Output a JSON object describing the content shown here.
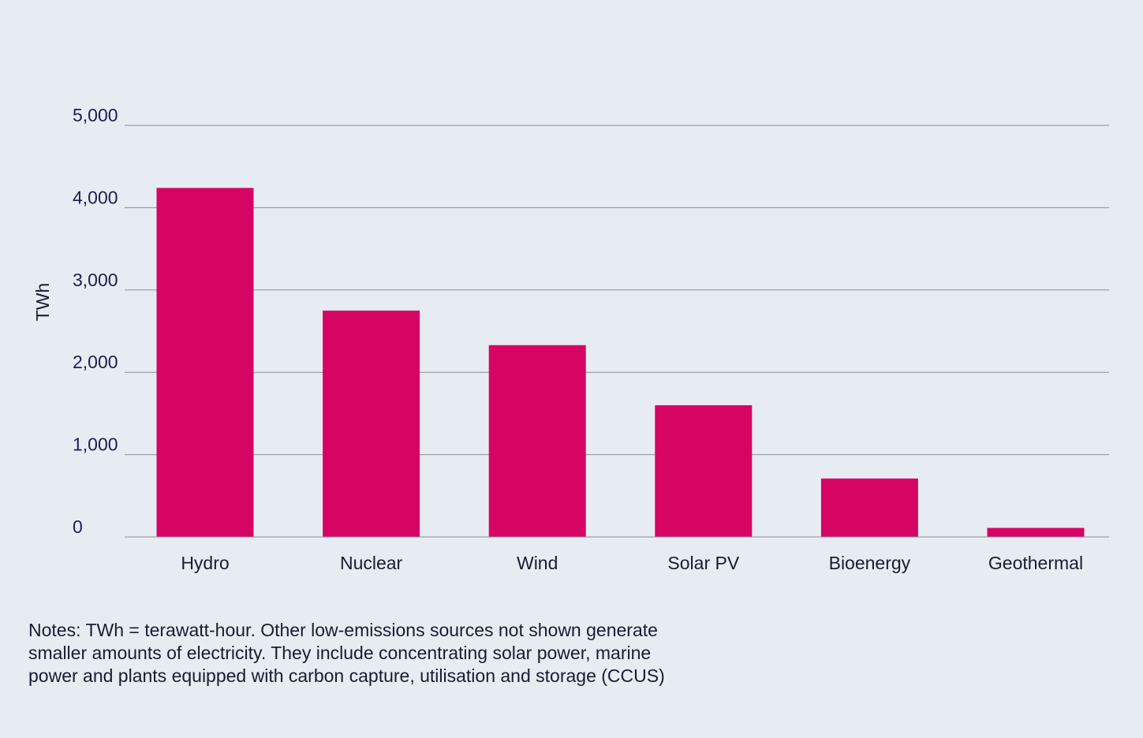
{
  "chart_data": {
    "type": "bar",
    "categories": [
      "Hydro",
      "Nuclear",
      "Wind",
      "Solar PV",
      "Bioenergy",
      "Geothermal"
    ],
    "values": [
      4240,
      2750,
      2330,
      1600,
      710,
      110
    ],
    "title": "",
    "xlabel": "",
    "ylabel": "TWh",
    "ylim": [
      0,
      5000
    ],
    "yticks": [
      0,
      1000,
      2000,
      3000,
      4000,
      5000
    ],
    "ytick_labels": [
      "0",
      "1,000",
      "2,000",
      "3,000",
      "4,000",
      "5,000"
    ],
    "grid": true,
    "legend": "none",
    "colors": {
      "bar": "#d60564",
      "grid": "#8a8f9a",
      "axis_text": "#1f1d4d",
      "category_text": "#1b1b2f",
      "background": "#e7ecf3"
    }
  },
  "notes": "Notes: TWh = terawatt-hour. Other low-emissions sources not shown generate smaller amounts of electricity. They include concentrating solar power, marine power and plants equipped with carbon capture, utilisation and storage (CCUS)"
}
